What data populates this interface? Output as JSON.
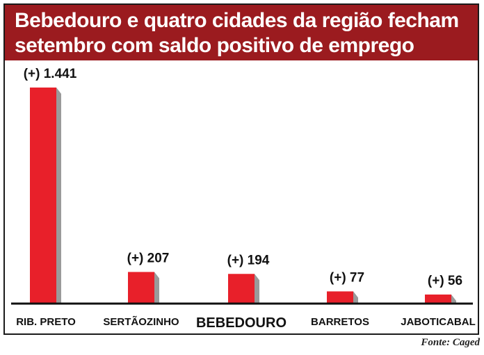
{
  "chart_data": {
    "type": "bar",
    "title": "Bebedouro e quatro cidades da região fecham setembro com saldo positivo de emprego",
    "title_lines": [
      "Bebedouro e quatro cidades da região fecham",
      "setembro com saldo positivo de emprego"
    ],
    "categories": [
      "RIB. PRETO",
      "SERTÃOZINHO",
      "BEBEDOURO",
      "BARRETOS",
      "JABOTICABAL"
    ],
    "values": [
      1441,
      207,
      194,
      77,
      56
    ],
    "data_labels": [
      "(+) 1.441",
      "(+) 207",
      "(+) 194",
      "(+) 77",
      "(+) 56"
    ],
    "highlight_category": "BEBEDOURO",
    "xlabel": "",
    "ylabel": "",
    "ylim": [
      0,
      1500
    ],
    "grid": false,
    "bar_color": "#e8202a",
    "shadow_color": "#9a9a9a",
    "header_color": "#9b1b1f"
  },
  "source": "Fonte: Caged"
}
